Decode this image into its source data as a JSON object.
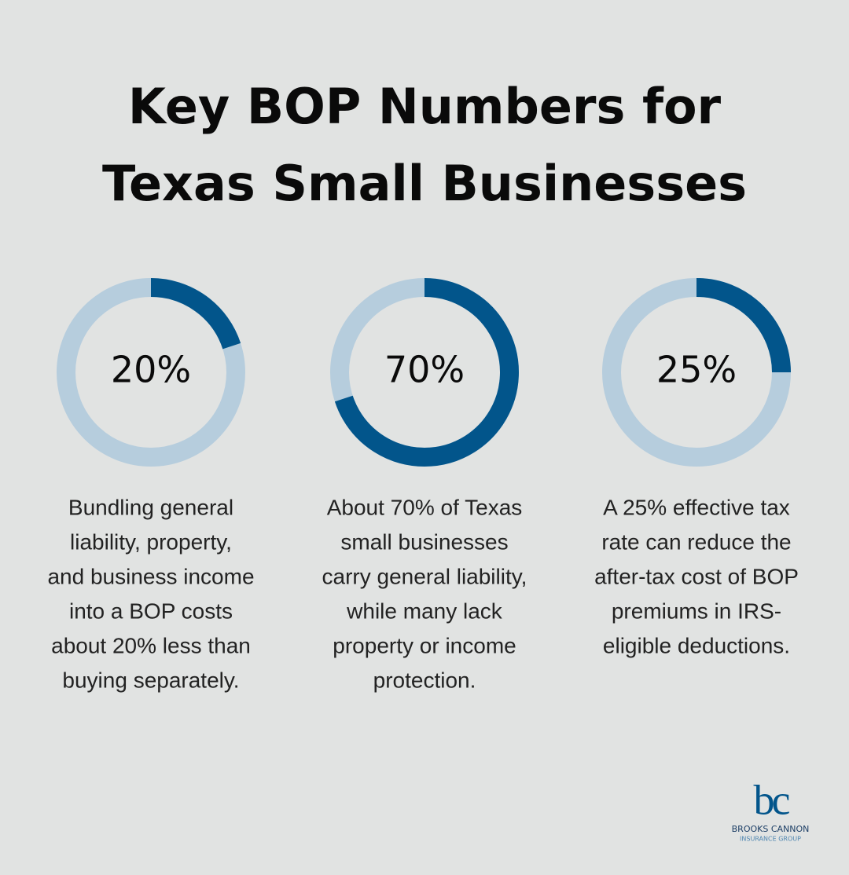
{
  "title": [
    "Key BOP Numbers for",
    "Texas Small Businesses"
  ],
  "chart_data": [
    {
      "type": "donut",
      "values": [
        20
      ],
      "value_labels": [
        "20%"
      ],
      "color": "#02558b",
      "track_color": "#b6cddd",
      "caption": [
        "Bundling general",
        "liability, property,",
        "and business income",
        "into a BOP costs",
        "about 20% less than",
        "buying separately."
      ]
    },
    {
      "type": "donut",
      "values": [
        70
      ],
      "value_labels": [
        "70%"
      ],
      "color": "#02558b",
      "track_color": "#b6cddd",
      "caption": [
        "About 70% of Texas",
        "small businesses",
        "carry general liability,",
        "while many lack",
        "property or income",
        "protection."
      ]
    },
    {
      "type": "donut",
      "values": [
        25
      ],
      "value_labels": [
        "25%"
      ],
      "color": "#02558b",
      "track_color": "#b6cddd",
      "caption": [
        "A 25% effective tax",
        "rate can reduce the",
        "after-tax cost of BOP",
        "premiums in IRS-",
        "eligible deductions."
      ]
    }
  ],
  "logo": {
    "mark": "bc",
    "name": "BROOKS CANNON",
    "tagline": "INSURANCE GROUP"
  }
}
